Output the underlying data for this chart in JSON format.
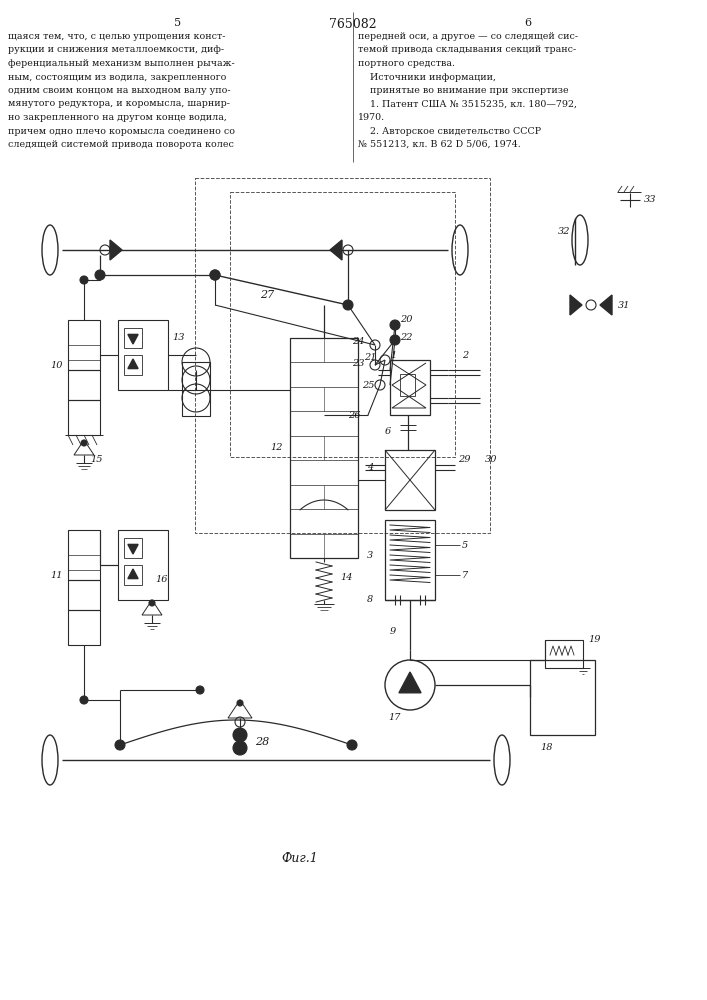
{
  "title": "765082",
  "fig_label": "Фиг.1",
  "page_left": "5",
  "page_right": "6",
  "bg_color": "#ffffff",
  "line_color": "#2a2a2a",
  "text_color": "#1a1a1a",
  "figsize": [
    7.07,
    10.0
  ],
  "dpi": 100,
  "left_text_lines": [
    "щаяся тем, что, с целью упрощения конст-",
    "рукции и снижения металлоемкости, диф-",
    "ференциальный механизм выполнен рычаж-",
    "ным, состоящим из водила, закрепленного",
    "одним своим концом на выходном валу упо-",
    "мянутого редуктора, и коромысла, шарнир-",
    "но закрепленного на другом конце водила,",
    "причем одно плечо коромысла соединено со",
    "следящей системой привода поворота колес"
  ],
  "right_text_lines": [
    "передней оси, а другое — со следящей сис-",
    "темой привода складывания секций транс-",
    "портного средства.",
    "    Источники информации,",
    "    принятые во внимание при экспертизе",
    "    1. Патент США № 3515235, кл. 180—792,",
    "1970.",
    "    2. Авторское свидетельство СССР",
    "№ 551213, кл. В 62 D 5/06, 1974."
  ]
}
